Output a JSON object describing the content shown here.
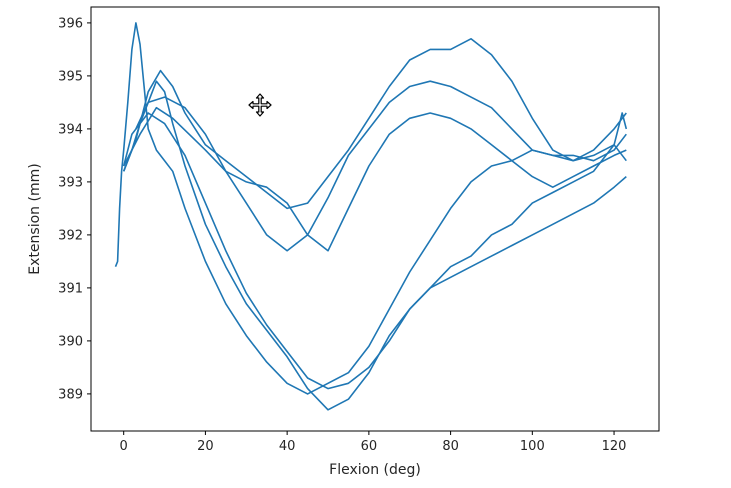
{
  "chart_data": {
    "type": "line",
    "title": "",
    "xlabel": "Flexion (deg)",
    "ylabel": "Extension (mm)",
    "xlim": [
      -8,
      131
    ],
    "ylim": [
      388.3,
      396.3
    ],
    "xticks": [
      0,
      20,
      40,
      60,
      80,
      100,
      120
    ],
    "yticks": [
      389,
      390,
      391,
      392,
      393,
      394,
      395,
      396
    ],
    "grid": false,
    "legend": "none",
    "line_color": "#1f77b4",
    "series": [
      {
        "x": [
          -2,
          -1.5,
          -1,
          -0.5,
          0,
          1,
          2,
          3,
          4,
          5,
          6,
          8,
          10,
          12,
          15,
          20,
          25,
          30,
          35,
          40,
          45,
          50,
          55,
          60,
          65,
          70,
          75,
          80,
          85,
          90,
          95,
          100,
          105,
          110,
          115,
          120,
          122,
          123
        ],
        "y": [
          391.4,
          391.5,
          392.5,
          393.2,
          393.6,
          394.5,
          395.5,
          396.0,
          395.6,
          394.8,
          394.0,
          393.6,
          393.4,
          393.2,
          392.5,
          391.5,
          390.7,
          390.1,
          389.6,
          389.2,
          389.0,
          389.2,
          389.4,
          389.9,
          390.6,
          391.3,
          391.9,
          392.5,
          393.0,
          393.3,
          393.4,
          393.6,
          393.5,
          393.4,
          393.5,
          393.7,
          394.3,
          394.0
        ]
      },
      {
        "x": [
          123,
          120,
          118,
          115,
          110,
          105,
          100,
          95,
          90,
          85,
          80,
          75,
          70,
          65,
          60,
          55,
          50,
          45,
          40,
          35,
          30,
          25,
          20,
          15,
          12,
          10,
          8,
          6,
          4,
          2,
          0
        ],
        "y": [
          393.4,
          393.7,
          393.5,
          393.2,
          393.0,
          392.8,
          392.6,
          392.2,
          392.0,
          391.6,
          391.4,
          391.0,
          390.6,
          390.1,
          389.4,
          388.9,
          388.7,
          389.1,
          389.7,
          390.2,
          390.7,
          391.4,
          392.2,
          393.3,
          394.1,
          394.7,
          394.9,
          394.5,
          394.1,
          393.6,
          393.2
        ]
      },
      {
        "x": [
          0,
          3,
          6,
          9,
          12,
          15,
          20,
          25,
          30,
          35,
          40,
          45,
          50,
          55,
          60,
          65,
          70,
          75,
          80,
          85,
          90,
          95,
          100,
          105,
          110,
          115,
          120,
          123
        ],
        "y": [
          393.2,
          393.8,
          394.7,
          395.1,
          394.8,
          394.3,
          393.7,
          393.4,
          393.1,
          392.8,
          392.5,
          392.6,
          393.1,
          393.6,
          394.2,
          394.8,
          395.3,
          395.5,
          395.5,
          395.7,
          395.4,
          394.9,
          394.2,
          393.6,
          393.4,
          393.6,
          394.0,
          394.3
        ]
      },
      {
        "x": [
          123,
          120,
          115,
          110,
          105,
          100,
          95,
          90,
          85,
          80,
          75,
          70,
          65,
          60,
          55,
          50,
          45,
          40,
          35,
          30,
          25,
          20,
          15,
          10,
          6,
          3
        ],
        "y": [
          393.9,
          393.6,
          393.4,
          393.5,
          393.5,
          393.6,
          394.0,
          394.4,
          394.6,
          394.8,
          394.9,
          394.8,
          394.5,
          394.0,
          393.5,
          392.7,
          392.0,
          391.7,
          392.0,
          392.6,
          393.2,
          393.9,
          394.4,
          394.6,
          394.5,
          394.0
        ]
      },
      {
        "x": [
          0,
          4,
          8,
          12,
          16,
          20,
          25,
          30,
          35,
          40,
          45,
          50,
          55,
          60,
          65,
          70,
          75,
          80,
          85,
          90,
          95,
          100,
          105,
          110,
          115,
          120,
          123
        ],
        "y": [
          393.3,
          393.9,
          394.4,
          394.2,
          393.9,
          393.6,
          393.2,
          393.0,
          392.9,
          392.6,
          392.0,
          391.7,
          392.5,
          393.3,
          393.9,
          394.2,
          394.3,
          394.2,
          394.0,
          393.7,
          393.4,
          393.1,
          392.9,
          393.1,
          393.3,
          393.5,
          393.6
        ]
      },
      {
        "x": [
          123,
          120,
          115,
          110,
          105,
          100,
          95,
          90,
          85,
          80,
          75,
          70,
          65,
          60,
          55,
          50,
          45,
          40,
          35,
          30,
          25,
          20,
          15,
          10,
          6,
          2,
          0
        ],
        "y": [
          393.1,
          392.9,
          392.6,
          392.4,
          392.2,
          392.0,
          391.8,
          391.6,
          391.4,
          391.2,
          391.0,
          390.6,
          390.0,
          389.5,
          389.2,
          389.1,
          389.3,
          389.8,
          390.3,
          390.9,
          391.7,
          392.6,
          393.5,
          394.1,
          394.3,
          393.9,
          393.3
        ]
      }
    ]
  },
  "cursor": {
    "icon": "move-cursor-icon"
  }
}
